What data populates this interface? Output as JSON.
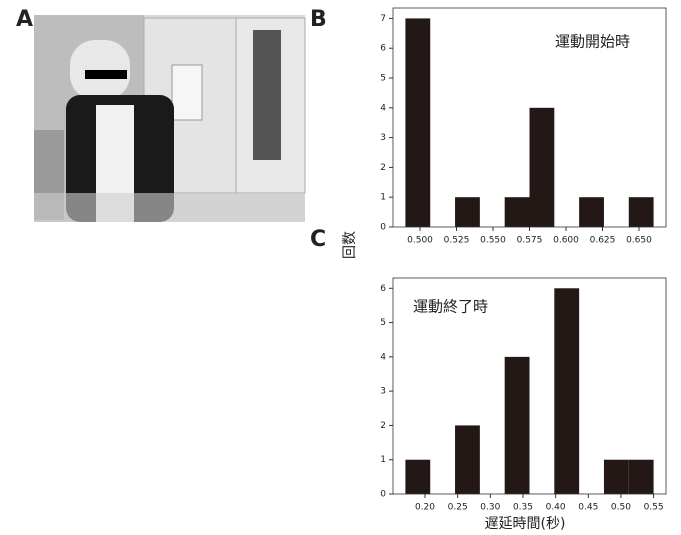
{
  "panel_labels": [
    "A",
    "B",
    "C"
  ],
  "y_label": "回数",
  "x_label": "遅延時間(秒)",
  "chart_data": [
    {
      "type": "histogram",
      "annotation": "運動開始時",
      "color": "#231815",
      "bins": [
        0.49,
        0.507,
        0.524,
        0.541,
        0.558,
        0.575,
        0.592,
        0.609,
        0.626,
        0.643,
        0.66
      ],
      "values": [
        7,
        0,
        1,
        0,
        1,
        4,
        0,
        1,
        0,
        1
      ],
      "xlim": [
        0.4815,
        0.6685
      ],
      "ylim": [
        0,
        7.35
      ],
      "xticks": [
        {
          "value": 0.5,
          "label": "0.500"
        },
        {
          "value": 0.525,
          "label": "0.525"
        },
        {
          "value": 0.55,
          "label": "0.550"
        },
        {
          "value": 0.575,
          "label": "0.575"
        },
        {
          "value": 0.6,
          "label": "0.600"
        },
        {
          "value": 0.625,
          "label": "0.625"
        },
        {
          "value": 0.65,
          "label": "0.650"
        }
      ],
      "yticks": [
        0,
        1,
        2,
        3,
        4,
        5,
        6,
        7
      ]
    },
    {
      "type": "histogram",
      "annotation": "運動終了時",
      "color": "#231815",
      "bins": [
        0.17,
        0.208,
        0.246,
        0.284,
        0.322,
        0.36,
        0.398,
        0.436,
        0.474,
        0.512,
        0.55
      ],
      "values": [
        1,
        0,
        2,
        0,
        4,
        0,
        6,
        0,
        1,
        1
      ],
      "xlim": [
        0.151,
        0.569
      ],
      "ylim": [
        0,
        6.3
      ],
      "xticks": [
        {
          "value": 0.2,
          "label": "0.20"
        },
        {
          "value": 0.25,
          "label": "0.25"
        },
        {
          "value": 0.3,
          "label": "0.30"
        },
        {
          "value": 0.35,
          "label": "0.35"
        },
        {
          "value": 0.4,
          "label": "0.40"
        },
        {
          "value": 0.45,
          "label": "0.45"
        },
        {
          "value": 0.5,
          "label": "0.50"
        },
        {
          "value": 0.55,
          "label": "0.55"
        }
      ],
      "yticks": [
        0,
        1,
        2,
        3,
        4,
        5,
        6
      ]
    }
  ]
}
